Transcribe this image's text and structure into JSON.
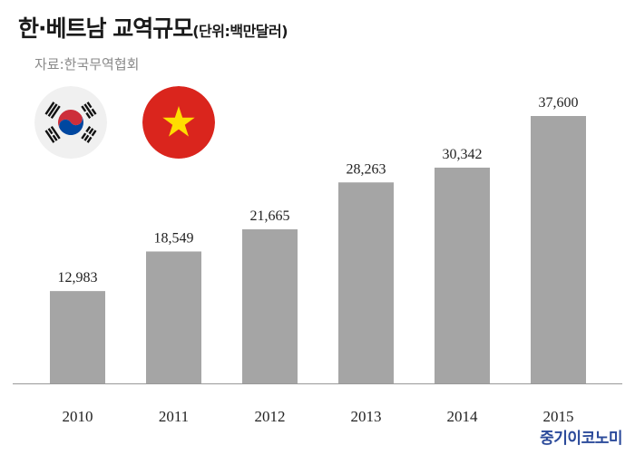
{
  "header": {
    "title": "한·베트남 교역규모",
    "unit": "(단위:백만달러)",
    "source": "자료:한국무역협회"
  },
  "flags": [
    {
      "icon": "south-korea-flag-icon"
    },
    {
      "icon": "vietnam-flag-icon"
    }
  ],
  "brand": "중기이코노미",
  "colors": {
    "bar": "#a5a5a5",
    "axis": "#999999",
    "brand": "#2b4a9a",
    "vietnam_red": "#da251d",
    "vietnam_star": "#ffdd00",
    "korea_red": "#cd2e3a",
    "korea_blue": "#0047a0"
  },
  "chart_data": {
    "type": "bar",
    "categories": [
      "2010",
      "2011",
      "2012",
      "2013",
      "2014",
      "2015"
    ],
    "values": [
      12983,
      18549,
      21665,
      28263,
      30342,
      37600
    ],
    "value_labels": [
      "12,983",
      "18,549",
      "21,665",
      "28,263",
      "30,342",
      "37,600"
    ],
    "title": "한·베트남 교역규모",
    "xlabel": "",
    "ylabel": "",
    "ylim": [
      0,
      37600
    ],
    "grid": false,
    "legend": "none"
  }
}
